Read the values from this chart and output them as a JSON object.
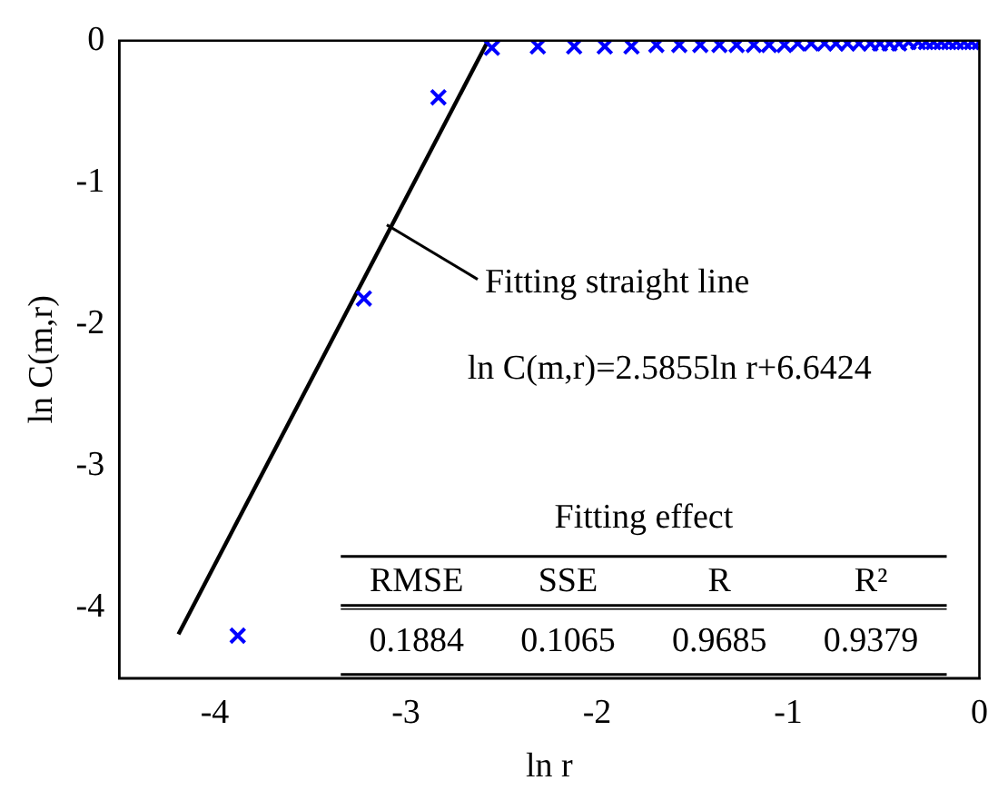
{
  "chart_data": {
    "type": "scatter",
    "xlabel": "ln r",
    "ylabel": "ln C(m,r)",
    "xlim": [
      -4.5,
      0
    ],
    "ylim": [
      -4.5,
      0
    ],
    "xticks": [
      -4,
      -3,
      -2,
      -1,
      0
    ],
    "yticks": [
      -4,
      -3,
      -2,
      -1,
      0
    ],
    "grid": false,
    "legend": false,
    "marker": "cross",
    "series": [
      {
        "color": "#0000ff",
        "x": [
          -3.88,
          -3.22,
          -2.83,
          -2.55,
          -2.31,
          -2.12,
          -1.96,
          -1.82,
          -1.69,
          -1.57,
          -1.46,
          -1.36,
          -1.27,
          -1.18,
          -1.1,
          -1.02,
          -0.95,
          -0.88,
          -0.81,
          -0.75,
          -0.69,
          -0.63,
          -0.57,
          -0.52,
          -0.47,
          -0.42,
          -0.37,
          -0.32,
          -0.28,
          -0.24,
          -0.2,
          -0.16,
          -0.12,
          -0.08,
          -0.04,
          0
        ],
        "values": [
          -4.2,
          -1.82,
          -0.4,
          -0.05,
          -0.04,
          -0.04,
          -0.04,
          -0.04,
          -0.03,
          -0.03,
          -0.03,
          -0.03,
          -0.03,
          -0.03,
          -0.03,
          -0.03,
          -0.02,
          -0.02,
          -0.02,
          -0.02,
          -0.02,
          -0.02,
          -0.02,
          -0.02,
          -0.02,
          -0.02,
          -0.01,
          -0.01,
          -0.01,
          -0.01,
          -0.01,
          -0.01,
          -0.01,
          -0.01,
          -0.01,
          -0.01
        ]
      },
      {
        "type": "line",
        "color": "#000000",
        "line_style": "solid",
        "marker": "none",
        "x": [
          -4.19,
          -2.57
        ],
        "values": [
          -4.19,
          0
        ]
      }
    ],
    "annotations": [
      {
        "text": "Fitting straight line",
        "x": -3.1,
        "y": -1.3
      },
      "ln C(m,r)=2.5855ln r+6.6424",
      "Fitting effect",
      "RMSE",
      "SSE",
      "R",
      "R²",
      "0.1884",
      "0.1065",
      "0.9685",
      "0.9379"
    ]
  }
}
